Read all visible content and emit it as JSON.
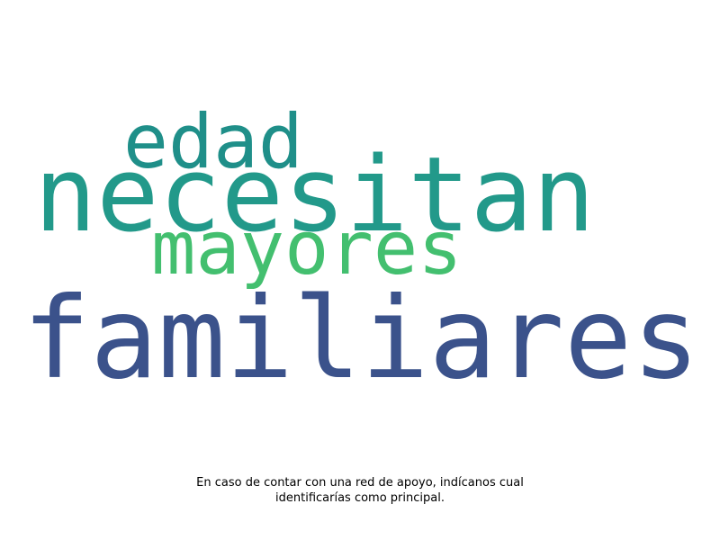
{
  "words": [
    {
      "text": "edad",
      "color": "#1f8f89"
    },
    {
      "text": "necesitan",
      "color": "#22998a"
    },
    {
      "text": "mayores",
      "color": "#43bf6f"
    },
    {
      "text": "familiares",
      "color": "#3b528b"
    }
  ],
  "caption": {
    "line1": "En caso de contar con una red de apoyo, indícanos cual",
    "line2": "identificarías como principal."
  }
}
